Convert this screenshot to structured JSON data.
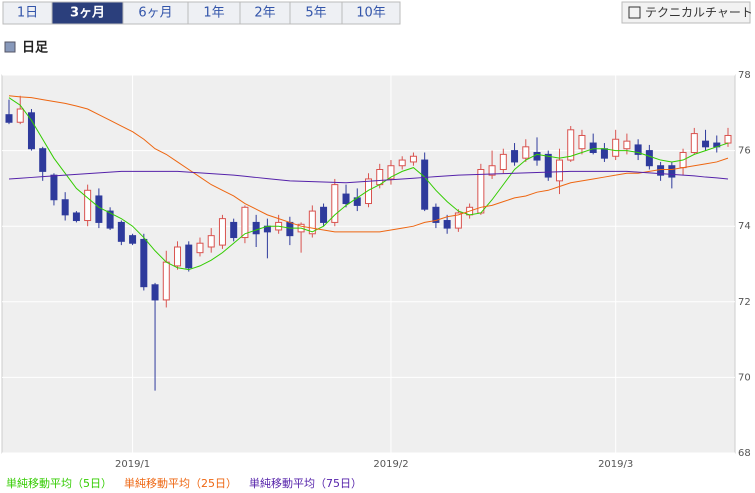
{
  "tabs": [
    "1日",
    "3ヶ月",
    "6ヶ月",
    "1年",
    "2年",
    "5年",
    "10年"
  ],
  "selected_tab": 1,
  "technical_button": "テクニカルチャート",
  "section_title": "日足",
  "chart_data": {
    "type": "candlestick",
    "categories": [
      null,
      null,
      null,
      null,
      null,
      null,
      null,
      null,
      null,
      null,
      null,
      "2019/1",
      null,
      null,
      null,
      null,
      null,
      null,
      null,
      null,
      null,
      null,
      null,
      null,
      null,
      null,
      null,
      null,
      null,
      null,
      null,
      null,
      null,
      null,
      "2019/2",
      null,
      null,
      null,
      null,
      null,
      null,
      null,
      null,
      null,
      null,
      null,
      null,
      null,
      null,
      null,
      null,
      null,
      null,
      null,
      "2019/3",
      null,
      null,
      null,
      null,
      null,
      null,
      null,
      null,
      null,
      null
    ],
    "open": [
      76.95,
      76.75,
      77.0,
      76.05,
      75.35,
      74.7,
      74.35,
      74.15,
      74.8,
      74.4,
      74.1,
      73.75,
      73.65,
      72.45,
      72.05,
      72.95,
      73.5,
      73.3,
      73.45,
      73.5,
      74.1,
      73.7,
      74.1,
      74.0,
      73.9,
      74.1,
      73.85,
      73.8,
      74.5,
      74.1,
      74.85,
      74.75,
      74.6,
      75.1,
      75.25,
      75.6,
      75.7,
      75.75,
      74.5,
      74.15,
      73.95,
      74.3,
      74.35,
      75.35,
      75.5,
      76.0,
      75.8,
      75.95,
      75.9,
      75.2,
      75.75,
      76.05,
      76.2,
      76.05,
      75.85,
      76.05,
      76.15,
      76.0,
      75.6,
      75.6,
      75.55,
      75.95,
      76.25,
      76.2,
      76.2
    ],
    "high": [
      77.35,
      77.45,
      77.1,
      76.1,
      75.4,
      74.9,
      74.4,
      75.1,
      75.0,
      74.5,
      74.15,
      73.8,
      73.8,
      72.5,
      73.35,
      73.6,
      73.6,
      73.7,
      73.95,
      74.3,
      74.2,
      74.55,
      74.3,
      74.2,
      74.3,
      74.25,
      74.1,
      74.55,
      74.6,
      75.25,
      75.1,
      75.0,
      75.4,
      75.65,
      75.75,
      75.85,
      75.95,
      75.95,
      74.6,
      74.3,
      74.45,
      74.6,
      75.65,
      76.0,
      76.05,
      76.2,
      76.3,
      76.35,
      76.0,
      76.05,
      76.65,
      76.55,
      76.45,
      76.2,
      76.55,
      76.45,
      76.3,
      76.15,
      75.7,
      75.7,
      76.05,
      76.6,
      76.55,
      76.4,
      76.6
    ],
    "low": [
      76.7,
      76.7,
      76.0,
      75.2,
      74.55,
      74.15,
      74.1,
      74.0,
      73.95,
      73.9,
      73.5,
      73.5,
      72.3,
      69.65,
      71.85,
      72.85,
      72.8,
      73.2,
      73.3,
      73.4,
      73.6,
      73.55,
      73.45,
      73.15,
      73.8,
      73.5,
      73.3,
      73.7,
      74.0,
      74.0,
      74.5,
      74.4,
      74.5,
      75.0,
      75.1,
      75.5,
      75.6,
      74.4,
      73.95,
      73.8,
      73.85,
      74.2,
      74.3,
      75.25,
      75.4,
      75.6,
      75.7,
      75.6,
      75.2,
      74.85,
      75.7,
      75.9,
      75.9,
      75.7,
      75.75,
      75.9,
      75.75,
      75.5,
      75.2,
      75.0,
      75.35,
      75.9,
      76.0,
      75.95,
      76.1
    ],
    "close": [
      76.75,
      77.1,
      76.05,
      75.45,
      74.7,
      74.3,
      74.15,
      74.95,
      74.1,
      73.95,
      73.6,
      73.55,
      72.4,
      72.05,
      73.05,
      73.45,
      72.9,
      73.55,
      73.75,
      74.2,
      73.7,
      74.5,
      73.8,
      73.85,
      74.1,
      73.75,
      74.05,
      74.4,
      74.1,
      75.1,
      74.6,
      74.55,
      75.25,
      75.5,
      75.6,
      75.75,
      75.85,
      74.45,
      74.1,
      73.95,
      74.35,
      74.5,
      75.5,
      75.6,
      75.9,
      75.7,
      76.1,
      75.75,
      75.3,
      75.75,
      76.55,
      76.4,
      75.95,
      75.8,
      76.3,
      76.25,
      75.9,
      75.6,
      75.35,
      75.3,
      75.95,
      76.45,
      76.1,
      76.1,
      76.4
    ],
    "up_color": "#d9534f",
    "down_color": "#2e3a9c",
    "lines": [
      {
        "name": "単純移動平均（5日）",
        "color": "#33cc00",
        "values": [
          77.4,
          77.2,
          76.8,
          76.3,
          75.8,
          75.4,
          75.0,
          74.75,
          74.5,
          74.35,
          74.2,
          74.0,
          73.7,
          73.35,
          73.05,
          72.9,
          72.85,
          72.95,
          73.1,
          73.3,
          73.55,
          73.8,
          73.9,
          74.0,
          74.0,
          73.95,
          73.95,
          73.85,
          74.0,
          74.3,
          74.55,
          74.75,
          74.95,
          75.1,
          75.3,
          75.45,
          75.55,
          75.3,
          74.95,
          74.65,
          74.4,
          74.3,
          74.35,
          74.7,
          75.1,
          75.5,
          75.75,
          75.9,
          75.85,
          75.8,
          75.85,
          75.95,
          76.05,
          76.05,
          76.0,
          76.0,
          75.95,
          75.85,
          75.75,
          75.7,
          75.75,
          75.9,
          76.0,
          76.1,
          76.2
        ]
      },
      {
        "name": "単純移動平均（25日）",
        "color": "#ee6611",
        "values": [
          77.45,
          77.42,
          77.4,
          77.35,
          77.3,
          77.25,
          77.18,
          77.1,
          76.95,
          76.8,
          76.65,
          76.5,
          76.3,
          76.05,
          75.9,
          75.7,
          75.5,
          75.3,
          75.1,
          74.95,
          74.8,
          74.6,
          74.45,
          74.3,
          74.2,
          74.1,
          74.0,
          73.95,
          73.9,
          73.85,
          73.85,
          73.85,
          73.85,
          73.85,
          73.9,
          73.95,
          74.0,
          74.1,
          74.15,
          74.25,
          74.3,
          74.4,
          74.5,
          74.55,
          74.65,
          74.75,
          74.8,
          74.9,
          74.95,
          75.05,
          75.15,
          75.2,
          75.25,
          75.3,
          75.35,
          75.4,
          75.4,
          75.45,
          75.5,
          75.5,
          75.55,
          75.6,
          75.65,
          75.7,
          75.8
        ]
      },
      {
        "name": "単純移動平均（75日）",
        "color": "#5522aa",
        "values": [
          75.25,
          75.27,
          75.29,
          75.31,
          75.33,
          75.35,
          75.37,
          75.39,
          75.41,
          75.43,
          75.45,
          75.45,
          75.45,
          75.45,
          75.45,
          75.45,
          75.43,
          75.41,
          75.39,
          75.37,
          75.35,
          75.32,
          75.29,
          75.26,
          75.23,
          75.2,
          75.19,
          75.18,
          75.17,
          75.16,
          75.15,
          75.17,
          75.19,
          75.21,
          75.23,
          75.25,
          75.27,
          75.29,
          75.31,
          75.33,
          75.35,
          75.36,
          75.37,
          75.38,
          75.39,
          75.4,
          75.41,
          75.42,
          75.43,
          75.44,
          75.45,
          75.45,
          75.45,
          75.45,
          75.45,
          75.45,
          75.43,
          75.41,
          75.39,
          75.37,
          75.35,
          75.33,
          75.3,
          75.28,
          75.25
        ]
      }
    ],
    "ylim": [
      68,
      78
    ],
    "yticks": [
      68,
      70,
      72,
      74,
      76,
      78
    ],
    "grid": true
  }
}
